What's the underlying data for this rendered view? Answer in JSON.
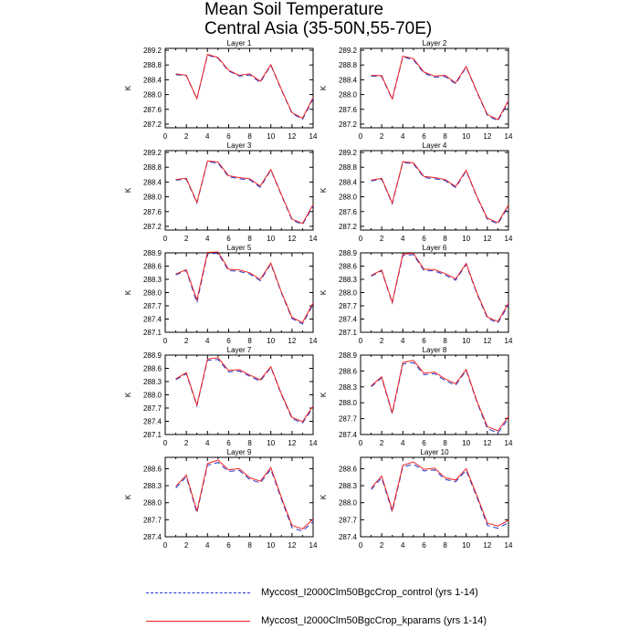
{
  "figure": {
    "title_line1": "Mean Soil Temperature",
    "title_line2": "Central Asia (35-50N,55-70E)"
  },
  "colors": {
    "control": "#2233cc",
    "kparams": "#ee2222"
  },
  "legend": {
    "control": "Myccost_I2000Clm50BgcCrop_control (yrs 1-14)",
    "kparams": "Myccost_I2000Clm50BgcCrop_kparams (yrs 1-14)"
  },
  "chart_data": [
    {
      "type": "line",
      "title": "Layer 1",
      "ylabel": "K",
      "xlim": [
        0,
        14
      ],
      "ylim": [
        287.1,
        289.25
      ],
      "xticks": [
        "0",
        "2",
        "4",
        "6",
        "8",
        "10",
        "12",
        "14"
      ],
      "yticks": [
        "287.2",
        "287.6",
        "288.0",
        "288.4",
        "288.8",
        "289.2"
      ],
      "x": [
        1,
        2,
        3,
        4,
        5,
        6,
        7,
        8,
        9,
        10,
        11,
        12,
        13,
        14
      ],
      "series": [
        {
          "name": "Myccost_I2000Clm50BgcCrop_control (yrs 1-14)",
          "values": [
            288.54,
            288.51,
            287.88,
            289.07,
            288.98,
            288.64,
            288.5,
            288.53,
            288.33,
            288.79,
            288.12,
            287.49,
            287.33,
            287.88
          ]
        },
        {
          "name": "Myccost_I2000Clm50BgcCrop_kparams (yrs 1-14)",
          "values": [
            288.56,
            288.52,
            287.89,
            289.09,
            289.0,
            288.66,
            288.52,
            288.56,
            288.36,
            288.81,
            288.14,
            287.51,
            287.36,
            287.92
          ]
        }
      ]
    },
    {
      "type": "line",
      "title": "Layer 2",
      "ylabel": "K",
      "xlim": [
        0,
        14
      ],
      "ylim": [
        287.1,
        289.25
      ],
      "xticks": [
        "0",
        "2",
        "4",
        "6",
        "8",
        "10",
        "12",
        "14"
      ],
      "yticks": [
        "287.2",
        "287.6",
        "288.0",
        "288.4",
        "288.8",
        "289.2"
      ],
      "x": [
        1,
        2,
        3,
        4,
        5,
        6,
        7,
        8,
        9,
        10,
        11,
        12,
        13,
        14
      ],
      "series": [
        {
          "name": "Myccost_I2000Clm50BgcCrop_control (yrs 1-14)",
          "values": [
            288.5,
            288.49,
            287.86,
            289.02,
            288.94,
            288.58,
            288.47,
            288.49,
            288.29,
            288.74,
            288.07,
            287.43,
            287.29,
            287.8
          ]
        },
        {
          "name": "Myccost_I2000Clm50BgcCrop_kparams (yrs 1-14)",
          "values": [
            288.52,
            288.51,
            287.88,
            289.04,
            288.97,
            288.61,
            288.5,
            288.52,
            288.32,
            288.76,
            288.09,
            287.46,
            287.32,
            287.84
          ]
        }
      ]
    },
    {
      "type": "line",
      "title": "Layer 3",
      "ylabel": "K",
      "xlim": [
        0,
        14
      ],
      "ylim": [
        287.1,
        289.25
      ],
      "xticks": [
        "0",
        "2",
        "4",
        "6",
        "8",
        "10",
        "12",
        "14"
      ],
      "yticks": [
        "287.2",
        "287.6",
        "288.0",
        "288.4",
        "288.8",
        "289.2"
      ],
      "x": [
        1,
        2,
        3,
        4,
        5,
        6,
        7,
        8,
        9,
        10,
        11,
        12,
        13,
        14
      ],
      "series": [
        {
          "name": "Myccost_I2000Clm50BgcCrop_control (yrs 1-14)",
          "values": [
            288.45,
            288.48,
            287.83,
            288.95,
            288.91,
            288.54,
            288.49,
            288.46,
            288.26,
            288.72,
            288.04,
            287.37,
            287.25,
            287.75
          ]
        },
        {
          "name": "Myccost_I2000Clm50BgcCrop_kparams (yrs 1-14)",
          "values": [
            288.47,
            288.5,
            287.85,
            288.97,
            288.94,
            288.57,
            288.52,
            288.49,
            288.29,
            288.74,
            288.06,
            287.4,
            287.28,
            287.79
          ]
        }
      ]
    },
    {
      "type": "line",
      "title": "Layer 4",
      "ylabel": "K",
      "xlim": [
        0,
        14
      ],
      "ylim": [
        287.1,
        289.25
      ],
      "xticks": [
        "0",
        "2",
        "4",
        "6",
        "8",
        "10",
        "12",
        "14"
      ],
      "yticks": [
        "287.2",
        "287.6",
        "288.0",
        "288.4",
        "288.8",
        "289.2"
      ],
      "x": [
        1,
        2,
        3,
        4,
        5,
        6,
        7,
        8,
        9,
        10,
        11,
        12,
        13,
        14
      ],
      "series": [
        {
          "name": "Myccost_I2000Clm50BgcCrop_control (yrs 1-14)",
          "values": [
            288.43,
            288.48,
            287.81,
            288.93,
            288.89,
            288.52,
            288.49,
            288.44,
            288.25,
            288.7,
            288.0,
            287.39,
            287.27,
            287.74
          ]
        },
        {
          "name": "Myccost_I2000Clm50BgcCrop_kparams (yrs 1-14)",
          "values": [
            288.45,
            288.5,
            287.83,
            288.95,
            288.92,
            288.55,
            288.52,
            288.47,
            288.28,
            288.72,
            288.02,
            287.42,
            287.3,
            287.78
          ]
        }
      ]
    },
    {
      "type": "line",
      "title": "Layer 5",
      "ylabel": "K",
      "xlim": [
        0,
        14
      ],
      "ylim": [
        287.1,
        288.9
      ],
      "xticks": [
        "0",
        "2",
        "4",
        "6",
        "8",
        "10",
        "12",
        "14"
      ],
      "yticks": [
        "287.1",
        "287.4",
        "287.7",
        "288.0",
        "288.3",
        "288.6",
        "288.9"
      ],
      "x": [
        1,
        2,
        3,
        4,
        5,
        6,
        7,
        8,
        9,
        10,
        11,
        12,
        13,
        14
      ],
      "series": [
        {
          "name": "Myccost_I2000Clm50BgcCrop_control (yrs 1-14)",
          "values": [
            288.4,
            288.5,
            287.77,
            288.88,
            288.89,
            288.5,
            288.48,
            288.42,
            288.27,
            288.65,
            287.99,
            287.41,
            287.29,
            287.73
          ]
        },
        {
          "name": "Myccost_I2000Clm50BgcCrop_kparams (yrs 1-14)",
          "values": [
            288.42,
            288.52,
            287.83,
            288.91,
            288.92,
            288.53,
            288.51,
            288.45,
            288.3,
            288.67,
            288.01,
            287.44,
            287.32,
            287.77
          ]
        }
      ]
    },
    {
      "type": "line",
      "title": "Layer 6",
      "ylabel": "K",
      "xlim": [
        0,
        14
      ],
      "ylim": [
        287.1,
        288.9
      ],
      "xticks": [
        "0",
        "2",
        "4",
        "6",
        "8",
        "10",
        "12",
        "14"
      ],
      "yticks": [
        "287.1",
        "287.4",
        "287.7",
        "288.0",
        "288.3",
        "288.6",
        "288.9"
      ],
      "x": [
        1,
        2,
        3,
        4,
        5,
        6,
        7,
        8,
        9,
        10,
        11,
        12,
        13,
        14
      ],
      "series": [
        {
          "name": "Myccost_I2000Clm50BgcCrop_control (yrs 1-14)",
          "values": [
            288.37,
            288.49,
            287.76,
            288.84,
            288.86,
            288.5,
            288.49,
            288.4,
            288.28,
            288.64,
            287.98,
            287.42,
            287.31,
            287.72
          ]
        },
        {
          "name": "Myccost_I2000Clm50BgcCrop_kparams (yrs 1-14)",
          "values": [
            288.39,
            288.51,
            287.78,
            288.87,
            288.89,
            288.53,
            288.52,
            288.43,
            288.31,
            288.66,
            288.0,
            287.45,
            287.34,
            287.76
          ]
        }
      ]
    },
    {
      "type": "line",
      "title": "Layer 7",
      "ylabel": "K",
      "xlim": [
        0,
        14
      ],
      "ylim": [
        287.1,
        288.9
      ],
      "xticks": [
        "0",
        "2",
        "4",
        "6",
        "8",
        "10",
        "12",
        "14"
      ],
      "yticks": [
        "287.1",
        "287.4",
        "287.7",
        "288.0",
        "288.3",
        "288.6",
        "288.9"
      ],
      "x": [
        1,
        2,
        3,
        4,
        5,
        6,
        7,
        8,
        9,
        10,
        11,
        12,
        13,
        14
      ],
      "series": [
        {
          "name": "Myccost_I2000Clm50BgcCrop_control (yrs 1-14)",
          "values": [
            288.34,
            288.48,
            287.75,
            288.78,
            288.8,
            288.52,
            288.54,
            288.42,
            288.31,
            288.62,
            288.0,
            287.46,
            287.36,
            287.71
          ]
        },
        {
          "name": "Myccost_I2000Clm50BgcCrop_kparams (yrs 1-14)",
          "values": [
            288.36,
            288.5,
            287.77,
            288.81,
            288.84,
            288.55,
            288.57,
            288.45,
            288.34,
            288.64,
            288.02,
            287.49,
            287.39,
            287.75
          ]
        }
      ]
    },
    {
      "type": "line",
      "title": "Layer 8",
      "ylabel": "K",
      "xlim": [
        0,
        14
      ],
      "ylim": [
        287.4,
        288.9
      ],
      "xticks": [
        "0",
        "2",
        "4",
        "6",
        "8",
        "10",
        "12",
        "14"
      ],
      "yticks": [
        "287.4",
        "287.7",
        "288.0",
        "288.3",
        "288.6",
        "288.9"
      ],
      "x": [
        1,
        2,
        3,
        4,
        5,
        6,
        7,
        8,
        9,
        10,
        11,
        12,
        13,
        14
      ],
      "series": [
        {
          "name": "Myccost_I2000Clm50BgcCrop_control (yrs 1-14)",
          "values": [
            288.3,
            288.47,
            287.79,
            288.73,
            288.76,
            288.53,
            288.55,
            288.42,
            288.33,
            288.61,
            288.02,
            287.51,
            287.43,
            287.7
          ]
        },
        {
          "name": "Myccost_I2000Clm50BgcCrop_kparams (yrs 1-14)",
          "values": [
            288.32,
            288.49,
            287.81,
            288.76,
            288.8,
            288.56,
            288.58,
            288.45,
            288.36,
            288.63,
            288.04,
            287.55,
            287.47,
            287.74
          ]
        }
      ]
    },
    {
      "type": "line",
      "title": "Layer 9",
      "ylabel": "K",
      "xlim": [
        0,
        14
      ],
      "ylim": [
        287.4,
        288.8
      ],
      "xticks": [
        "0",
        "2",
        "4",
        "6",
        "8",
        "10",
        "12",
        "14"
      ],
      "yticks": [
        "287.4",
        "287.7",
        "288.0",
        "288.3",
        "288.6"
      ],
      "x": [
        1,
        2,
        3,
        4,
        5,
        6,
        7,
        8,
        9,
        10,
        11,
        12,
        13,
        14
      ],
      "series": [
        {
          "name": "Myccost_I2000Clm50BgcCrop_control (yrs 1-14)",
          "values": [
            288.26,
            288.46,
            287.82,
            288.66,
            288.71,
            288.55,
            288.57,
            288.41,
            288.35,
            288.59,
            288.06,
            287.56,
            287.5,
            287.67
          ]
        },
        {
          "name": "Myccost_I2000Clm50BgcCrop_kparams (yrs 1-14)",
          "values": [
            288.29,
            288.49,
            287.85,
            288.69,
            288.75,
            288.58,
            288.6,
            288.44,
            288.38,
            288.62,
            288.09,
            287.6,
            287.54,
            287.71
          ]
        }
      ]
    },
    {
      "type": "line",
      "title": "Layer 10",
      "ylabel": "K",
      "xlim": [
        0,
        14
      ],
      "ylim": [
        287.4,
        288.8
      ],
      "xticks": [
        "0",
        "2",
        "4",
        "6",
        "8",
        "10",
        "12",
        "14"
      ],
      "yticks": [
        "287.4",
        "287.7",
        "288.0",
        "288.3",
        "288.6"
      ],
      "x": [
        1,
        2,
        3,
        4,
        5,
        6,
        7,
        8,
        9,
        10,
        11,
        12,
        13,
        14
      ],
      "series": [
        {
          "name": "Myccost_I2000Clm50BgcCrop_control (yrs 1-14)",
          "values": [
            288.23,
            288.44,
            287.84,
            288.63,
            288.68,
            288.56,
            288.58,
            288.41,
            288.37,
            288.57,
            288.1,
            287.6,
            287.55,
            287.65
          ]
        },
        {
          "name": "Myccost_I2000Clm50BgcCrop_kparams (yrs 1-14)",
          "values": [
            288.26,
            288.47,
            287.87,
            288.66,
            288.72,
            288.59,
            288.61,
            288.44,
            288.4,
            288.6,
            288.13,
            287.64,
            287.59,
            287.69
          ]
        }
      ]
    }
  ]
}
